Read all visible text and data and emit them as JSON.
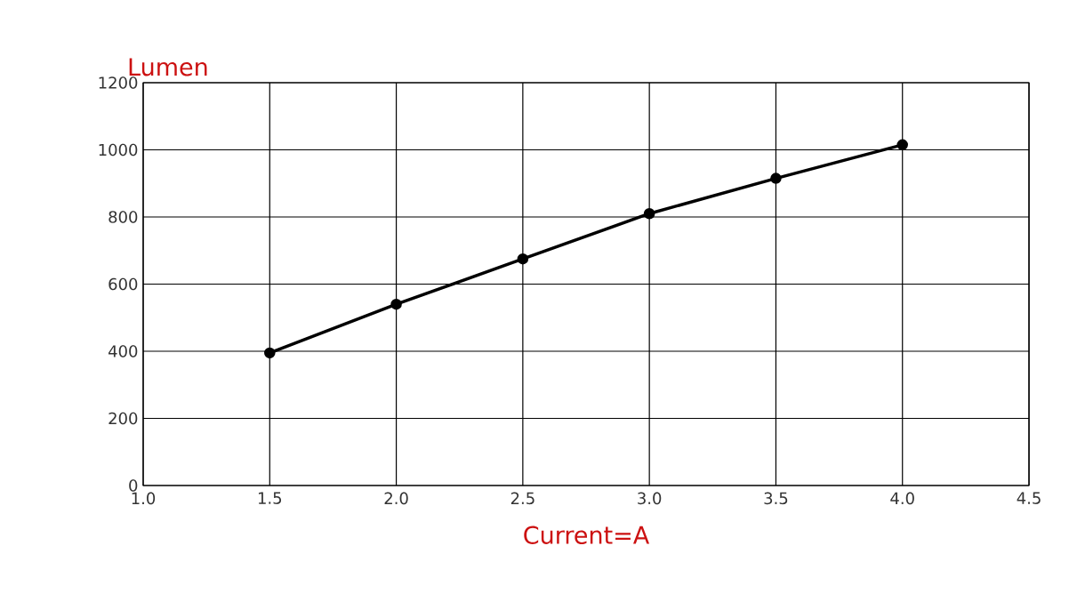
{
  "chart_data": {
    "type": "line",
    "xlabel": "Current=A",
    "ylabel": "Lumen",
    "x": [
      1.5,
      2.0,
      2.5,
      3.0,
      3.5,
      4.0
    ],
    "series": [
      {
        "color": "#000000",
        "values": [
          395,
          540,
          675,
          810,
          915,
          1015
        ]
      }
    ],
    "xlim": [
      1.0,
      4.5
    ],
    "xticks": [
      {
        "value": 1.0,
        "label": "1.0"
      },
      {
        "value": 1.5,
        "label": "1.5"
      },
      {
        "value": 2.0,
        "label": "2.0"
      },
      {
        "value": 2.5,
        "label": "2.5"
      },
      {
        "value": 3.0,
        "label": "3.0"
      },
      {
        "value": 3.5,
        "label": "3.5"
      },
      {
        "value": 4.0,
        "label": "4.0"
      },
      {
        "value": 4.5,
        "label": "4.5"
      }
    ],
    "ylim": [
      0,
      1200
    ],
    "yticks": [
      0,
      200,
      400,
      600,
      800,
      1000,
      1200
    ],
    "grid": true,
    "marker": "circle",
    "line_style": "solid",
    "legend": false
  }
}
